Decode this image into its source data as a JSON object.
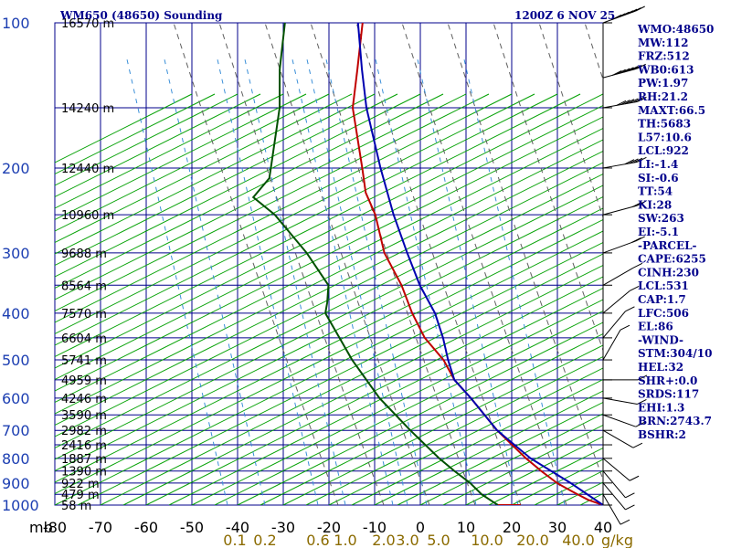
{
  "header": {
    "station": "WM650 (48650) Sounding",
    "valid_time": "1200Z  6 NOV 25"
  },
  "indices": [
    "WMO:48650",
    "MW:112",
    "FRZ:512",
    "WB0:613",
    "PW:1.97",
    "RH:21.2",
    "MAXT:66.5",
    "TH:5683",
    "L57:10.6",
    "LCL:922",
    "LI:-1.4",
    "SI:-0.6",
    "TT:54",
    "KI:28",
    "SW:263",
    "EI:-5.1",
    "-PARCEL-",
    "CAPE:6255",
    "CINH:230",
    "LCL:531",
    "CAP:1.7",
    "LFC:506",
    "EL:86",
    "-WIND-",
    "STM:304/10",
    "HEL:32",
    "SHR+:0.0",
    "SRDS:117",
    "EHI:1.3",
    "BRN:2743.7",
    "BSHR:2"
  ],
  "colors": {
    "grid": "#00008b",
    "dry_adiabat": "#00a000",
    "moist_adiabat": "#606060",
    "mixing_ratio": "#3a8fd8",
    "temperature": "#c00000",
    "dewpoint": "#005000",
    "parcel": "#0000b0",
    "index_text": "#00008b"
  },
  "chart_data": {
    "type": "skew-t log-p",
    "xlabel": "",
    "ylabel": "mb",
    "pressure_ticks": [
      100,
      200,
      300,
      400,
      500,
      600,
      700,
      800,
      900,
      1000
    ],
    "height_labels": [
      {
        "p": 100,
        "label": "16570 m"
      },
      {
        "p": 150,
        "label": "14240 m"
      },
      {
        "p": 200,
        "label": "12440 m"
      },
      {
        "p": 250,
        "label": "10960 m"
      },
      {
        "p": 300,
        "label": "9688 m"
      },
      {
        "p": 350,
        "label": "8564 m"
      },
      {
        "p": 400,
        "label": "7570 m"
      },
      {
        "p": 450,
        "label": "6604 m"
      },
      {
        "p": 500,
        "label": "5741 m"
      },
      {
        "p": 550,
        "label": "4959 m"
      },
      {
        "p": 600,
        "label": "4246 m"
      },
      {
        "p": 650,
        "label": "3590 m"
      },
      {
        "p": 700,
        "label": "2982 m"
      },
      {
        "p": 750,
        "label": "2416 m"
      },
      {
        "p": 800,
        "label": "1887 m"
      },
      {
        "p": 850,
        "label": "1390 m"
      },
      {
        "p": 900,
        "label": "922 m"
      },
      {
        "p": 950,
        "label": "479 m"
      },
      {
        "p": 1000,
        "label": "58 m"
      }
    ],
    "temperature_ticks": [
      {
        "label": "-80",
        "t": -80
      },
      {
        "label": "-70",
        "t": -70
      },
      {
        "label": "-60",
        "t": -60
      },
      {
        "label": "-50",
        "t": -50
      },
      {
        "label": "-40",
        "t": -40
      },
      {
        "label": "-30",
        "t": -30
      },
      {
        "label": "-20",
        "t": -20
      },
      {
        "label": "-10",
        "t": -10
      },
      {
        "label": "0",
        "t": 0
      },
      {
        "label": "10",
        "t": 10
      },
      {
        "label": "20",
        "t": 20
      },
      {
        "label": "30",
        "t": 30
      },
      {
        "label": "40",
        "t": 40
      }
    ],
    "mixing_ratio_ticks": [
      "0.1",
      "0.2",
      "0.6",
      "1.0",
      "2.0",
      "3.0",
      "5.0",
      "10.0",
      "20.0",
      "40.0"
    ],
    "mixing_ratio_unit": "g/kg",
    "xlim_c_at_1000mb": [
      -80,
      40
    ],
    "ylim_mb": [
      1000,
      100
    ],
    "series": [
      {
        "key": "temperature",
        "points": [
          {
            "p": 1000,
            "t": 40.0
          },
          {
            "p": 975,
            "t": 36
          },
          {
            "p": 950,
            "t": 33
          },
          {
            "p": 925,
            "t": 30
          },
          {
            "p": 900,
            "t": 27
          },
          {
            "p": 850,
            "t": 22
          },
          {
            "p": 800,
            "t": 17
          },
          {
            "p": 700,
            "t": 7
          },
          {
            "p": 600,
            "t": -3
          },
          {
            "p": 550,
            "t": -9
          },
          {
            "p": 500,
            "t": -14
          },
          {
            "p": 450,
            "t": -21
          },
          {
            "p": 400,
            "t": -27
          },
          {
            "p": 350,
            "t": -33
          },
          {
            "p": 300,
            "t": -41
          },
          {
            "p": 250,
            "t": -48
          },
          {
            "p": 225,
            "t": -53
          },
          {
            "p": 200,
            "t": -57
          },
          {
            "p": 150,
            "t": -67
          },
          {
            "p": 125,
            "t": -71
          },
          {
            "p": 100,
            "t": -76
          }
        ]
      },
      {
        "key": "dewpoint",
        "points": [
          {
            "p": 1000,
            "t": 17.0
          },
          {
            "p": 990,
            "t": 16
          },
          {
            "p": 950,
            "t": 12
          },
          {
            "p": 900,
            "t": 8
          },
          {
            "p": 850,
            "t": 3
          },
          {
            "p": 800,
            "t": -2
          },
          {
            "p": 700,
            "t": -12
          },
          {
            "p": 600,
            "t": -23
          },
          {
            "p": 500,
            "t": -34
          },
          {
            "p": 400,
            "t": -46
          },
          {
            "p": 380,
            "t": -47
          },
          {
            "p": 350,
            "t": -49
          },
          {
            "p": 300,
            "t": -58
          },
          {
            "p": 250,
            "t": -70
          },
          {
            "p": 230,
            "t": -77
          },
          {
            "p": 210,
            "t": -76
          },
          {
            "p": 200,
            "t": -77
          },
          {
            "p": 150,
            "t": -83
          },
          {
            "p": 125,
            "t": -88
          },
          {
            "p": 100,
            "t": -93
          }
        ]
      },
      {
        "key": "parcel",
        "points": [
          {
            "p": 1000,
            "t": 40.0
          },
          {
            "p": 900,
            "t": 30
          },
          {
            "p": 800,
            "t": 18
          },
          {
            "p": 700,
            "t": 7
          },
          {
            "p": 600,
            "t": -3
          },
          {
            "p": 550,
            "t": -9
          },
          {
            "p": 500,
            "t": -13
          },
          {
            "p": 450,
            "t": -17
          },
          {
            "p": 400,
            "t": -22
          },
          {
            "p": 350,
            "t": -29
          },
          {
            "p": 300,
            "t": -36
          },
          {
            "p": 250,
            "t": -44
          },
          {
            "p": 200,
            "t": -53
          },
          {
            "p": 150,
            "t": -64
          },
          {
            "p": 125,
            "t": -70
          },
          {
            "p": 100,
            "t": -77
          }
        ]
      },
      {
        "key": "surface_marker",
        "points": [
          {
            "p": 1000,
            "t": 17.0
          },
          {
            "p": 1000,
            "t": 22.0
          }
        ]
      }
    ],
    "wind_barbs": [
      {
        "p": 100,
        "dir": 290,
        "spd": 70
      },
      {
        "p": 130,
        "dir": 285,
        "spd": 65
      },
      {
        "p": 150,
        "dir": 280,
        "spd": 55
      },
      {
        "p": 200,
        "dir": 280,
        "spd": 40
      },
      {
        "p": 250,
        "dir": 285,
        "spd": 20
      },
      {
        "p": 300,
        "dir": 290,
        "spd": 15
      },
      {
        "p": 350,
        "dir": 300,
        "spd": 10
      },
      {
        "p": 400,
        "dir": 310,
        "spd": 10
      },
      {
        "p": 450,
        "dir": 320,
        "spd": 10
      },
      {
        "p": 500,
        "dir": 330,
        "spd": 5
      },
      {
        "p": 550,
        "dir": 270,
        "spd": 5
      },
      {
        "p": 600,
        "dir": 260,
        "spd": 5
      },
      {
        "p": 650,
        "dir": 250,
        "spd": 5
      },
      {
        "p": 700,
        "dir": 240,
        "spd": 5
      },
      {
        "p": 800,
        "dir": 230,
        "spd": 10
      },
      {
        "p": 850,
        "dir": 220,
        "spd": 10
      },
      {
        "p": 900,
        "dir": 220,
        "spd": 10
      },
      {
        "p": 950,
        "dir": 210,
        "spd": 10
      }
    ]
  }
}
